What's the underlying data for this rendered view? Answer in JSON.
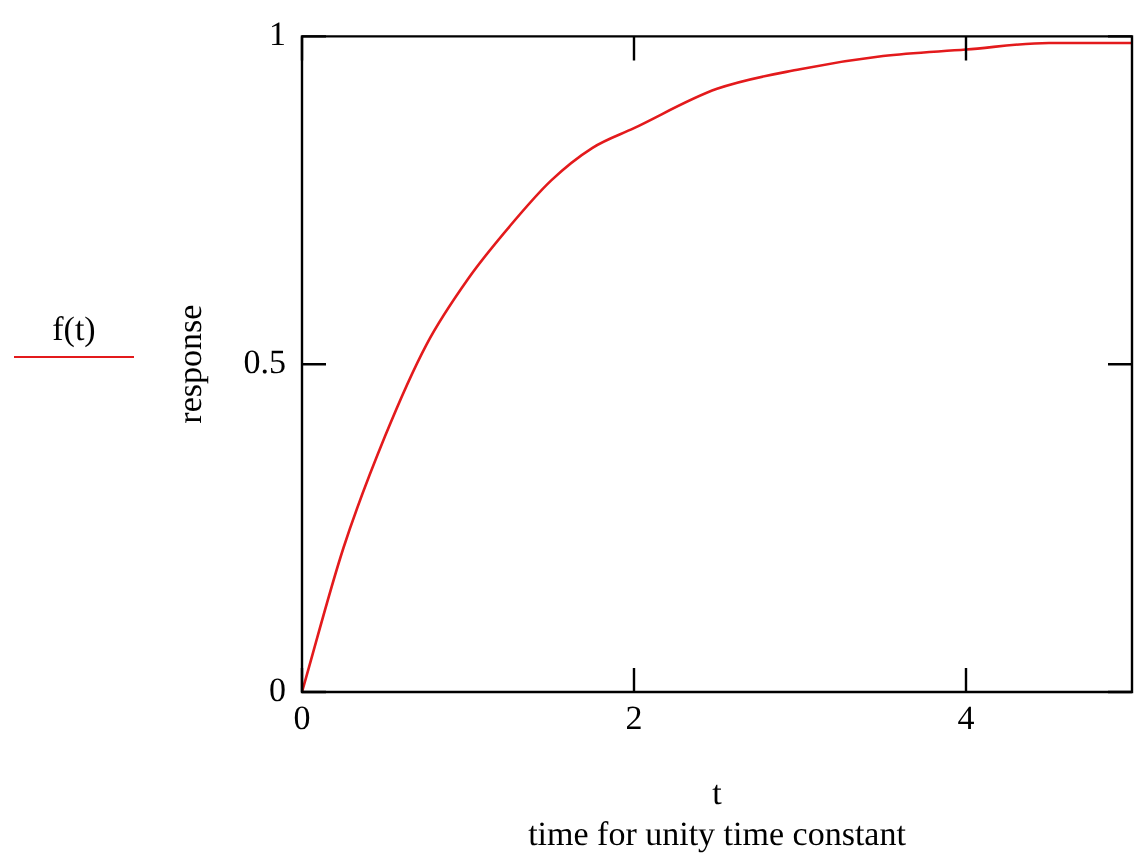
{
  "chart_data": {
    "type": "line",
    "xlabel": "t\ntime for unity time constant",
    "ylabel": "response",
    "x": [
      0,
      0.25,
      0.5,
      0.75,
      1,
      1.25,
      1.5,
      1.75,
      2,
      2.5,
      3,
      3.5,
      4,
      4.5,
      5
    ],
    "series": [
      {
        "name": "f(t)",
        "color": "#e31a1c",
        "values": [
          0,
          0.22,
          0.39,
          0.53,
          0.63,
          0.71,
          0.78,
          0.83,
          0.86,
          0.92,
          0.95,
          0.97,
          0.98,
          0.99,
          0.99
        ]
      }
    ],
    "xlim": [
      0,
      5
    ],
    "xticks": [
      0,
      2,
      4
    ],
    "ylim": [
      0,
      1
    ],
    "yticks": [
      0,
      0.5,
      1
    ],
    "grid": false,
    "legend": "left",
    "marker": "none",
    "line_style": "solid"
  }
}
